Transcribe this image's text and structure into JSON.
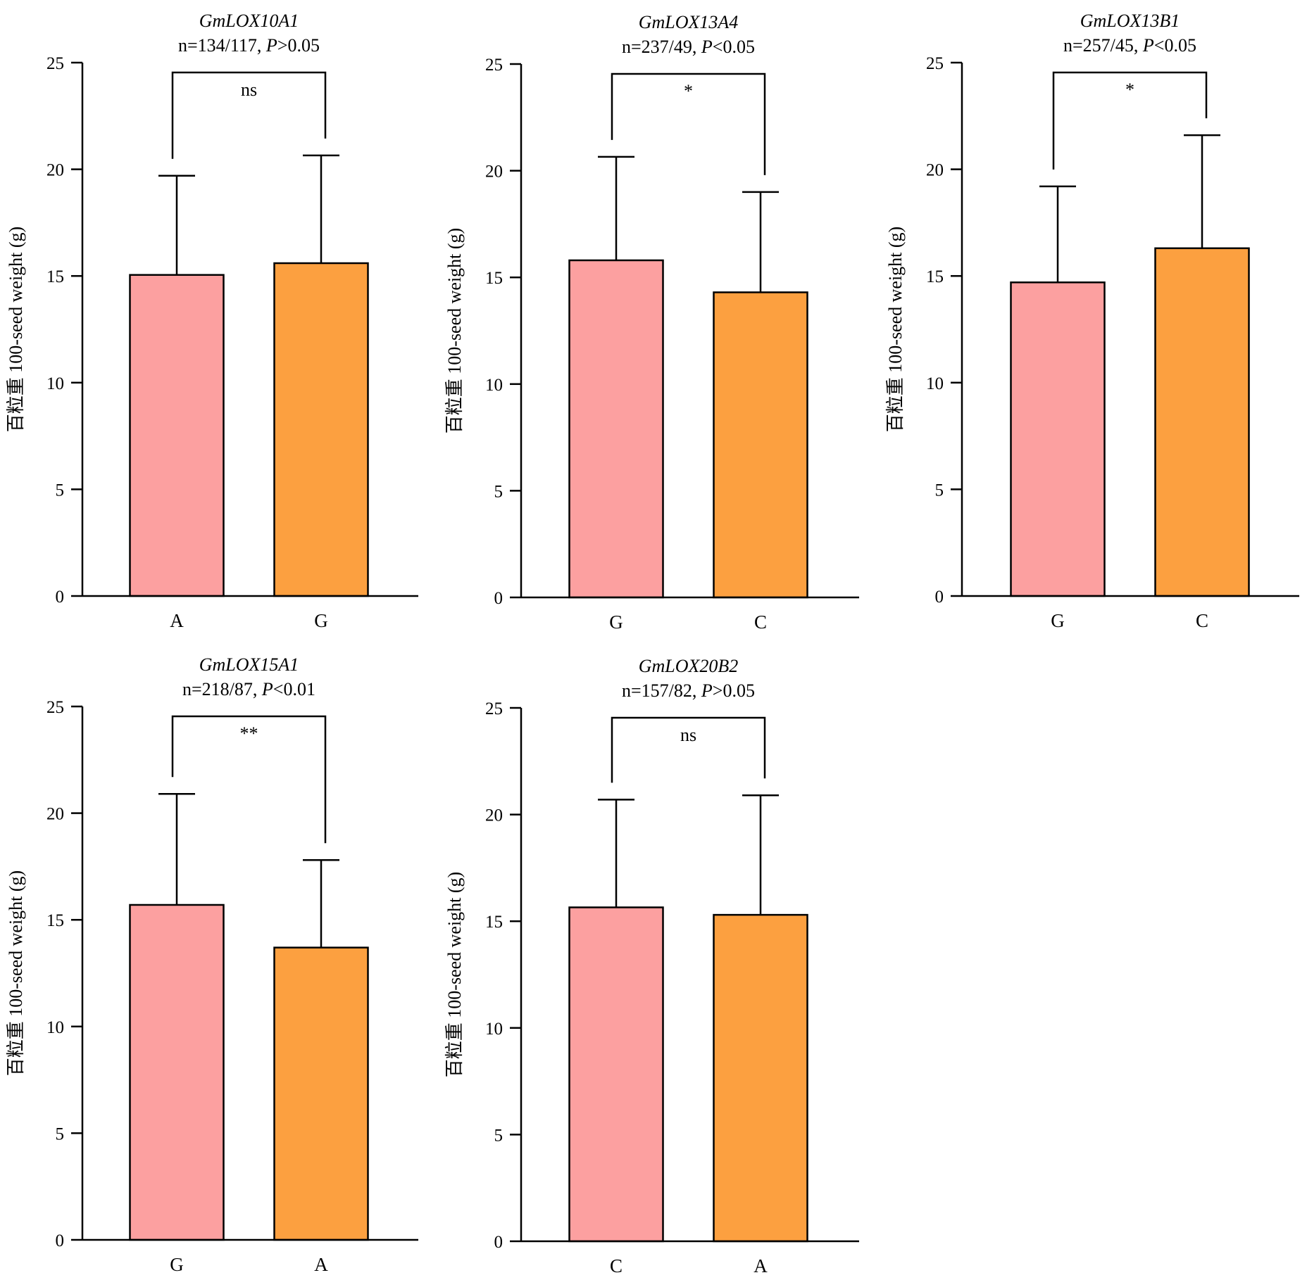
{
  "chart_data": [
    {
      "type": "bar",
      "title": "GmLOX10A1",
      "subtitle": {
        "n": "n=134/117, ",
        "p_symbol": "P",
        "p_value": ">0.05"
      },
      "ylabel": "百粒重 100-seed weight (g)",
      "ylim": [
        0,
        25
      ],
      "yticks": [
        "0",
        "5",
        "10",
        "15",
        "20",
        "25"
      ],
      "categories": [
        "A",
        "G"
      ],
      "values": [
        15.05,
        15.6
      ],
      "errors": [
        4.65,
        5.05
      ],
      "bar_colors": [
        "#fca0a0",
        "#fca040"
      ],
      "significance": "ns"
    },
    {
      "type": "bar",
      "title": "GmLOX13A4",
      "subtitle": {
        "n": "n=237/49, ",
        "p_symbol": "P",
        "p_value": "<0.05"
      },
      "ylabel": "百粒重 100-seed weight (g)",
      "ylim": [
        0,
        25
      ],
      "yticks": [
        "0",
        "5",
        "10",
        "15",
        "20",
        "25"
      ],
      "categories": [
        "G",
        "C"
      ],
      "values": [
        15.8,
        14.3
      ],
      "errors": [
        4.85,
        4.7
      ],
      "bar_colors": [
        "#fca0a0",
        "#fca040"
      ],
      "significance": "*"
    },
    {
      "type": "bar",
      "title": "GmLOX13B1",
      "subtitle": {
        "n": "n=257/45, ",
        "p_symbol": "P",
        "p_value": "<0.05"
      },
      "ylabel": "百粒重 100-seed weight (g)",
      "ylim": [
        0,
        25
      ],
      "yticks": [
        "0",
        "5",
        "10",
        "15",
        "20",
        "25"
      ],
      "categories": [
        "G",
        "C"
      ],
      "values": [
        14.7,
        16.3
      ],
      "errors": [
        4.5,
        5.3
      ],
      "bar_colors": [
        "#fca0a0",
        "#fca040"
      ],
      "significance": "*"
    },
    {
      "type": "bar",
      "title": "GmLOX15A1",
      "subtitle": {
        "n": "n=218/87, ",
        "p_symbol": "P",
        "p_value": "<0.01"
      },
      "ylabel": "百粒重 100-seed weight (g)",
      "ylim": [
        0,
        25
      ],
      "yticks": [
        "0",
        "5",
        "10",
        "15",
        "20",
        "25"
      ],
      "categories": [
        "G",
        "A"
      ],
      "values": [
        15.7,
        13.7
      ],
      "errors": [
        5.2,
        4.1
      ],
      "bar_colors": [
        "#fca0a0",
        "#fca040"
      ],
      "significance": "**"
    },
    {
      "type": "bar",
      "title": "GmLOX20B2",
      "subtitle": {
        "n": "n=157/82, ",
        "p_symbol": "P",
        "p_value": ">0.05"
      },
      "ylabel": "百粒重 100-seed weight (g)",
      "ylim": [
        0,
        25
      ],
      "yticks": [
        "0",
        "5",
        "10",
        "15",
        "20",
        "25"
      ],
      "categories": [
        "C",
        "A"
      ],
      "values": [
        15.65,
        15.3
      ],
      "errors": [
        5.05,
        5.6
      ],
      "bar_colors": [
        "#fca0a0",
        "#fca040"
      ],
      "significance": "ns"
    }
  ]
}
